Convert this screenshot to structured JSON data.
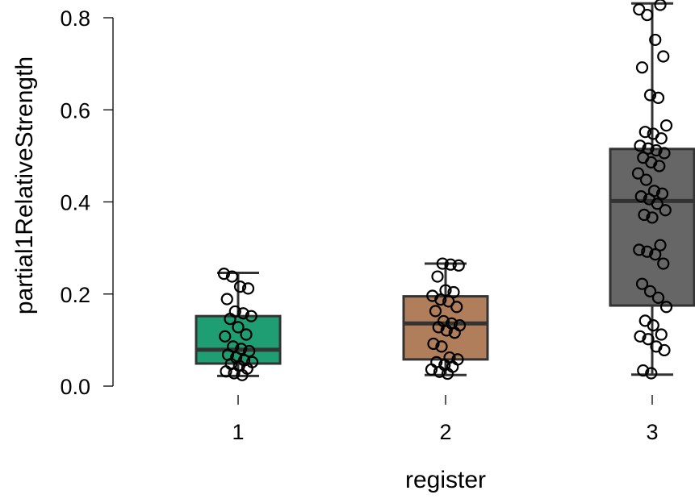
{
  "chart_data": {
    "type": "boxplot",
    "title": "",
    "xlabel": "register",
    "ylabel": "partial1RelativeStrength",
    "categories": [
      "1",
      "2",
      "3"
    ],
    "ylim": [
      0.0,
      0.8
    ],
    "yticks": [
      0.0,
      0.2,
      0.4,
      0.6,
      0.8
    ],
    "ytick_labels": [
      "0.0",
      "0.2",
      "0.4",
      "0.6",
      "0.8"
    ],
    "legend": "none",
    "grid": false,
    "boxes": [
      {
        "category": "1",
        "color": "#1f9e73",
        "whisker_low": 0.022,
        "q1": 0.049,
        "median": 0.079,
        "q3": 0.152,
        "whisker_high": 0.246,
        "points": [
          0.244,
          0.238,
          0.216,
          0.212,
          0.189,
          0.162,
          0.158,
          0.152,
          0.146,
          0.128,
          0.112,
          0.108,
          0.086,
          0.081,
          0.076,
          0.068,
          0.062,
          0.056,
          0.052,
          0.048,
          0.044,
          0.038,
          0.032,
          0.028,
          0.024
        ]
      },
      {
        "category": "2",
        "color": "#b07e5a",
        "whisker_low": 0.024,
        "q1": 0.058,
        "median": 0.136,
        "q3": 0.195,
        "whisker_high": 0.266,
        "points": [
          0.266,
          0.264,
          0.262,
          0.238,
          0.208,
          0.204,
          0.196,
          0.188,
          0.184,
          0.172,
          0.163,
          0.141,
          0.136,
          0.132,
          0.128,
          0.121,
          0.116,
          0.092,
          0.086,
          0.062,
          0.058,
          0.052,
          0.046,
          0.042,
          0.036,
          0.031,
          0.027
        ]
      },
      {
        "category": "3",
        "color": "#666666",
        "whisker_low": 0.025,
        "q1": 0.175,
        "median": 0.402,
        "q3": 0.515,
        "whisker_high": 0.831,
        "points": [
          0.828,
          0.818,
          0.806,
          0.752,
          0.716,
          0.692,
          0.632,
          0.626,
          0.566,
          0.552,
          0.548,
          0.538,
          0.522,
          0.516,
          0.512,
          0.506,
          0.496,
          0.486,
          0.478,
          0.462,
          0.448,
          0.424,
          0.418,
          0.412,
          0.406,
          0.396,
          0.382,
          0.372,
          0.366,
          0.306,
          0.296,
          0.292,
          0.286,
          0.266,
          0.222,
          0.206,
          0.192,
          0.172,
          0.142,
          0.132,
          0.112,
          0.108,
          0.102,
          0.086,
          0.078,
          0.034,
          0.028
        ]
      }
    ]
  }
}
